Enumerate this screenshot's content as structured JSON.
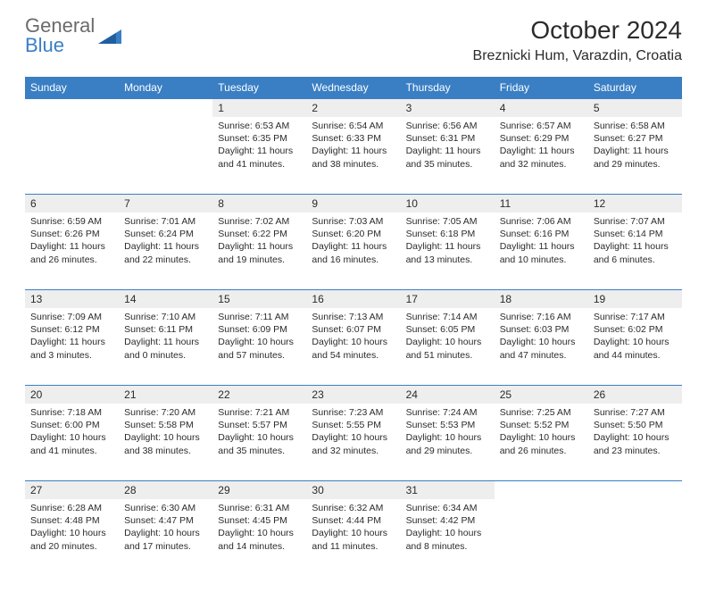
{
  "logo": {
    "general": "General",
    "blue": "Blue"
  },
  "header": {
    "title": "October 2024",
    "location": "Breznicki Hum, Varazdin, Croatia"
  },
  "colors": {
    "header_bg": "#3a7fc4",
    "header_fg": "#ffffff",
    "daynum_bg": "#eeeeee",
    "text": "#2b2b2b",
    "logo_gray": "#6b6b6b",
    "logo_blue": "#3a7fc4"
  },
  "weekdays": [
    "Sunday",
    "Monday",
    "Tuesday",
    "Wednesday",
    "Thursday",
    "Friday",
    "Saturday"
  ],
  "weeks": [
    [
      null,
      null,
      {
        "d": "1",
        "sr": "Sunrise: 6:53 AM",
        "ss": "Sunset: 6:35 PM",
        "dl1": "Daylight: 11 hours",
        "dl2": "and 41 minutes."
      },
      {
        "d": "2",
        "sr": "Sunrise: 6:54 AM",
        "ss": "Sunset: 6:33 PM",
        "dl1": "Daylight: 11 hours",
        "dl2": "and 38 minutes."
      },
      {
        "d": "3",
        "sr": "Sunrise: 6:56 AM",
        "ss": "Sunset: 6:31 PM",
        "dl1": "Daylight: 11 hours",
        "dl2": "and 35 minutes."
      },
      {
        "d": "4",
        "sr": "Sunrise: 6:57 AM",
        "ss": "Sunset: 6:29 PM",
        "dl1": "Daylight: 11 hours",
        "dl2": "and 32 minutes."
      },
      {
        "d": "5",
        "sr": "Sunrise: 6:58 AM",
        "ss": "Sunset: 6:27 PM",
        "dl1": "Daylight: 11 hours",
        "dl2": "and 29 minutes."
      }
    ],
    [
      {
        "d": "6",
        "sr": "Sunrise: 6:59 AM",
        "ss": "Sunset: 6:26 PM",
        "dl1": "Daylight: 11 hours",
        "dl2": "and 26 minutes."
      },
      {
        "d": "7",
        "sr": "Sunrise: 7:01 AM",
        "ss": "Sunset: 6:24 PM",
        "dl1": "Daylight: 11 hours",
        "dl2": "and 22 minutes."
      },
      {
        "d": "8",
        "sr": "Sunrise: 7:02 AM",
        "ss": "Sunset: 6:22 PM",
        "dl1": "Daylight: 11 hours",
        "dl2": "and 19 minutes."
      },
      {
        "d": "9",
        "sr": "Sunrise: 7:03 AM",
        "ss": "Sunset: 6:20 PM",
        "dl1": "Daylight: 11 hours",
        "dl2": "and 16 minutes."
      },
      {
        "d": "10",
        "sr": "Sunrise: 7:05 AM",
        "ss": "Sunset: 6:18 PM",
        "dl1": "Daylight: 11 hours",
        "dl2": "and 13 minutes."
      },
      {
        "d": "11",
        "sr": "Sunrise: 7:06 AM",
        "ss": "Sunset: 6:16 PM",
        "dl1": "Daylight: 11 hours",
        "dl2": "and 10 minutes."
      },
      {
        "d": "12",
        "sr": "Sunrise: 7:07 AM",
        "ss": "Sunset: 6:14 PM",
        "dl1": "Daylight: 11 hours",
        "dl2": "and 6 minutes."
      }
    ],
    [
      {
        "d": "13",
        "sr": "Sunrise: 7:09 AM",
        "ss": "Sunset: 6:12 PM",
        "dl1": "Daylight: 11 hours",
        "dl2": "and 3 minutes."
      },
      {
        "d": "14",
        "sr": "Sunrise: 7:10 AM",
        "ss": "Sunset: 6:11 PM",
        "dl1": "Daylight: 11 hours",
        "dl2": "and 0 minutes."
      },
      {
        "d": "15",
        "sr": "Sunrise: 7:11 AM",
        "ss": "Sunset: 6:09 PM",
        "dl1": "Daylight: 10 hours",
        "dl2": "and 57 minutes."
      },
      {
        "d": "16",
        "sr": "Sunrise: 7:13 AM",
        "ss": "Sunset: 6:07 PM",
        "dl1": "Daylight: 10 hours",
        "dl2": "and 54 minutes."
      },
      {
        "d": "17",
        "sr": "Sunrise: 7:14 AM",
        "ss": "Sunset: 6:05 PM",
        "dl1": "Daylight: 10 hours",
        "dl2": "and 51 minutes."
      },
      {
        "d": "18",
        "sr": "Sunrise: 7:16 AM",
        "ss": "Sunset: 6:03 PM",
        "dl1": "Daylight: 10 hours",
        "dl2": "and 47 minutes."
      },
      {
        "d": "19",
        "sr": "Sunrise: 7:17 AM",
        "ss": "Sunset: 6:02 PM",
        "dl1": "Daylight: 10 hours",
        "dl2": "and 44 minutes."
      }
    ],
    [
      {
        "d": "20",
        "sr": "Sunrise: 7:18 AM",
        "ss": "Sunset: 6:00 PM",
        "dl1": "Daylight: 10 hours",
        "dl2": "and 41 minutes."
      },
      {
        "d": "21",
        "sr": "Sunrise: 7:20 AM",
        "ss": "Sunset: 5:58 PM",
        "dl1": "Daylight: 10 hours",
        "dl2": "and 38 minutes."
      },
      {
        "d": "22",
        "sr": "Sunrise: 7:21 AM",
        "ss": "Sunset: 5:57 PM",
        "dl1": "Daylight: 10 hours",
        "dl2": "and 35 minutes."
      },
      {
        "d": "23",
        "sr": "Sunrise: 7:23 AM",
        "ss": "Sunset: 5:55 PM",
        "dl1": "Daylight: 10 hours",
        "dl2": "and 32 minutes."
      },
      {
        "d": "24",
        "sr": "Sunrise: 7:24 AM",
        "ss": "Sunset: 5:53 PM",
        "dl1": "Daylight: 10 hours",
        "dl2": "and 29 minutes."
      },
      {
        "d": "25",
        "sr": "Sunrise: 7:25 AM",
        "ss": "Sunset: 5:52 PM",
        "dl1": "Daylight: 10 hours",
        "dl2": "and 26 minutes."
      },
      {
        "d": "26",
        "sr": "Sunrise: 7:27 AM",
        "ss": "Sunset: 5:50 PM",
        "dl1": "Daylight: 10 hours",
        "dl2": "and 23 minutes."
      }
    ],
    [
      {
        "d": "27",
        "sr": "Sunrise: 6:28 AM",
        "ss": "Sunset: 4:48 PM",
        "dl1": "Daylight: 10 hours",
        "dl2": "and 20 minutes."
      },
      {
        "d": "28",
        "sr": "Sunrise: 6:30 AM",
        "ss": "Sunset: 4:47 PM",
        "dl1": "Daylight: 10 hours",
        "dl2": "and 17 minutes."
      },
      {
        "d": "29",
        "sr": "Sunrise: 6:31 AM",
        "ss": "Sunset: 4:45 PM",
        "dl1": "Daylight: 10 hours",
        "dl2": "and 14 minutes."
      },
      {
        "d": "30",
        "sr": "Sunrise: 6:32 AM",
        "ss": "Sunset: 4:44 PM",
        "dl1": "Daylight: 10 hours",
        "dl2": "and 11 minutes."
      },
      {
        "d": "31",
        "sr": "Sunrise: 6:34 AM",
        "ss": "Sunset: 4:42 PM",
        "dl1": "Daylight: 10 hours",
        "dl2": "and 8 minutes."
      },
      null,
      null
    ]
  ]
}
